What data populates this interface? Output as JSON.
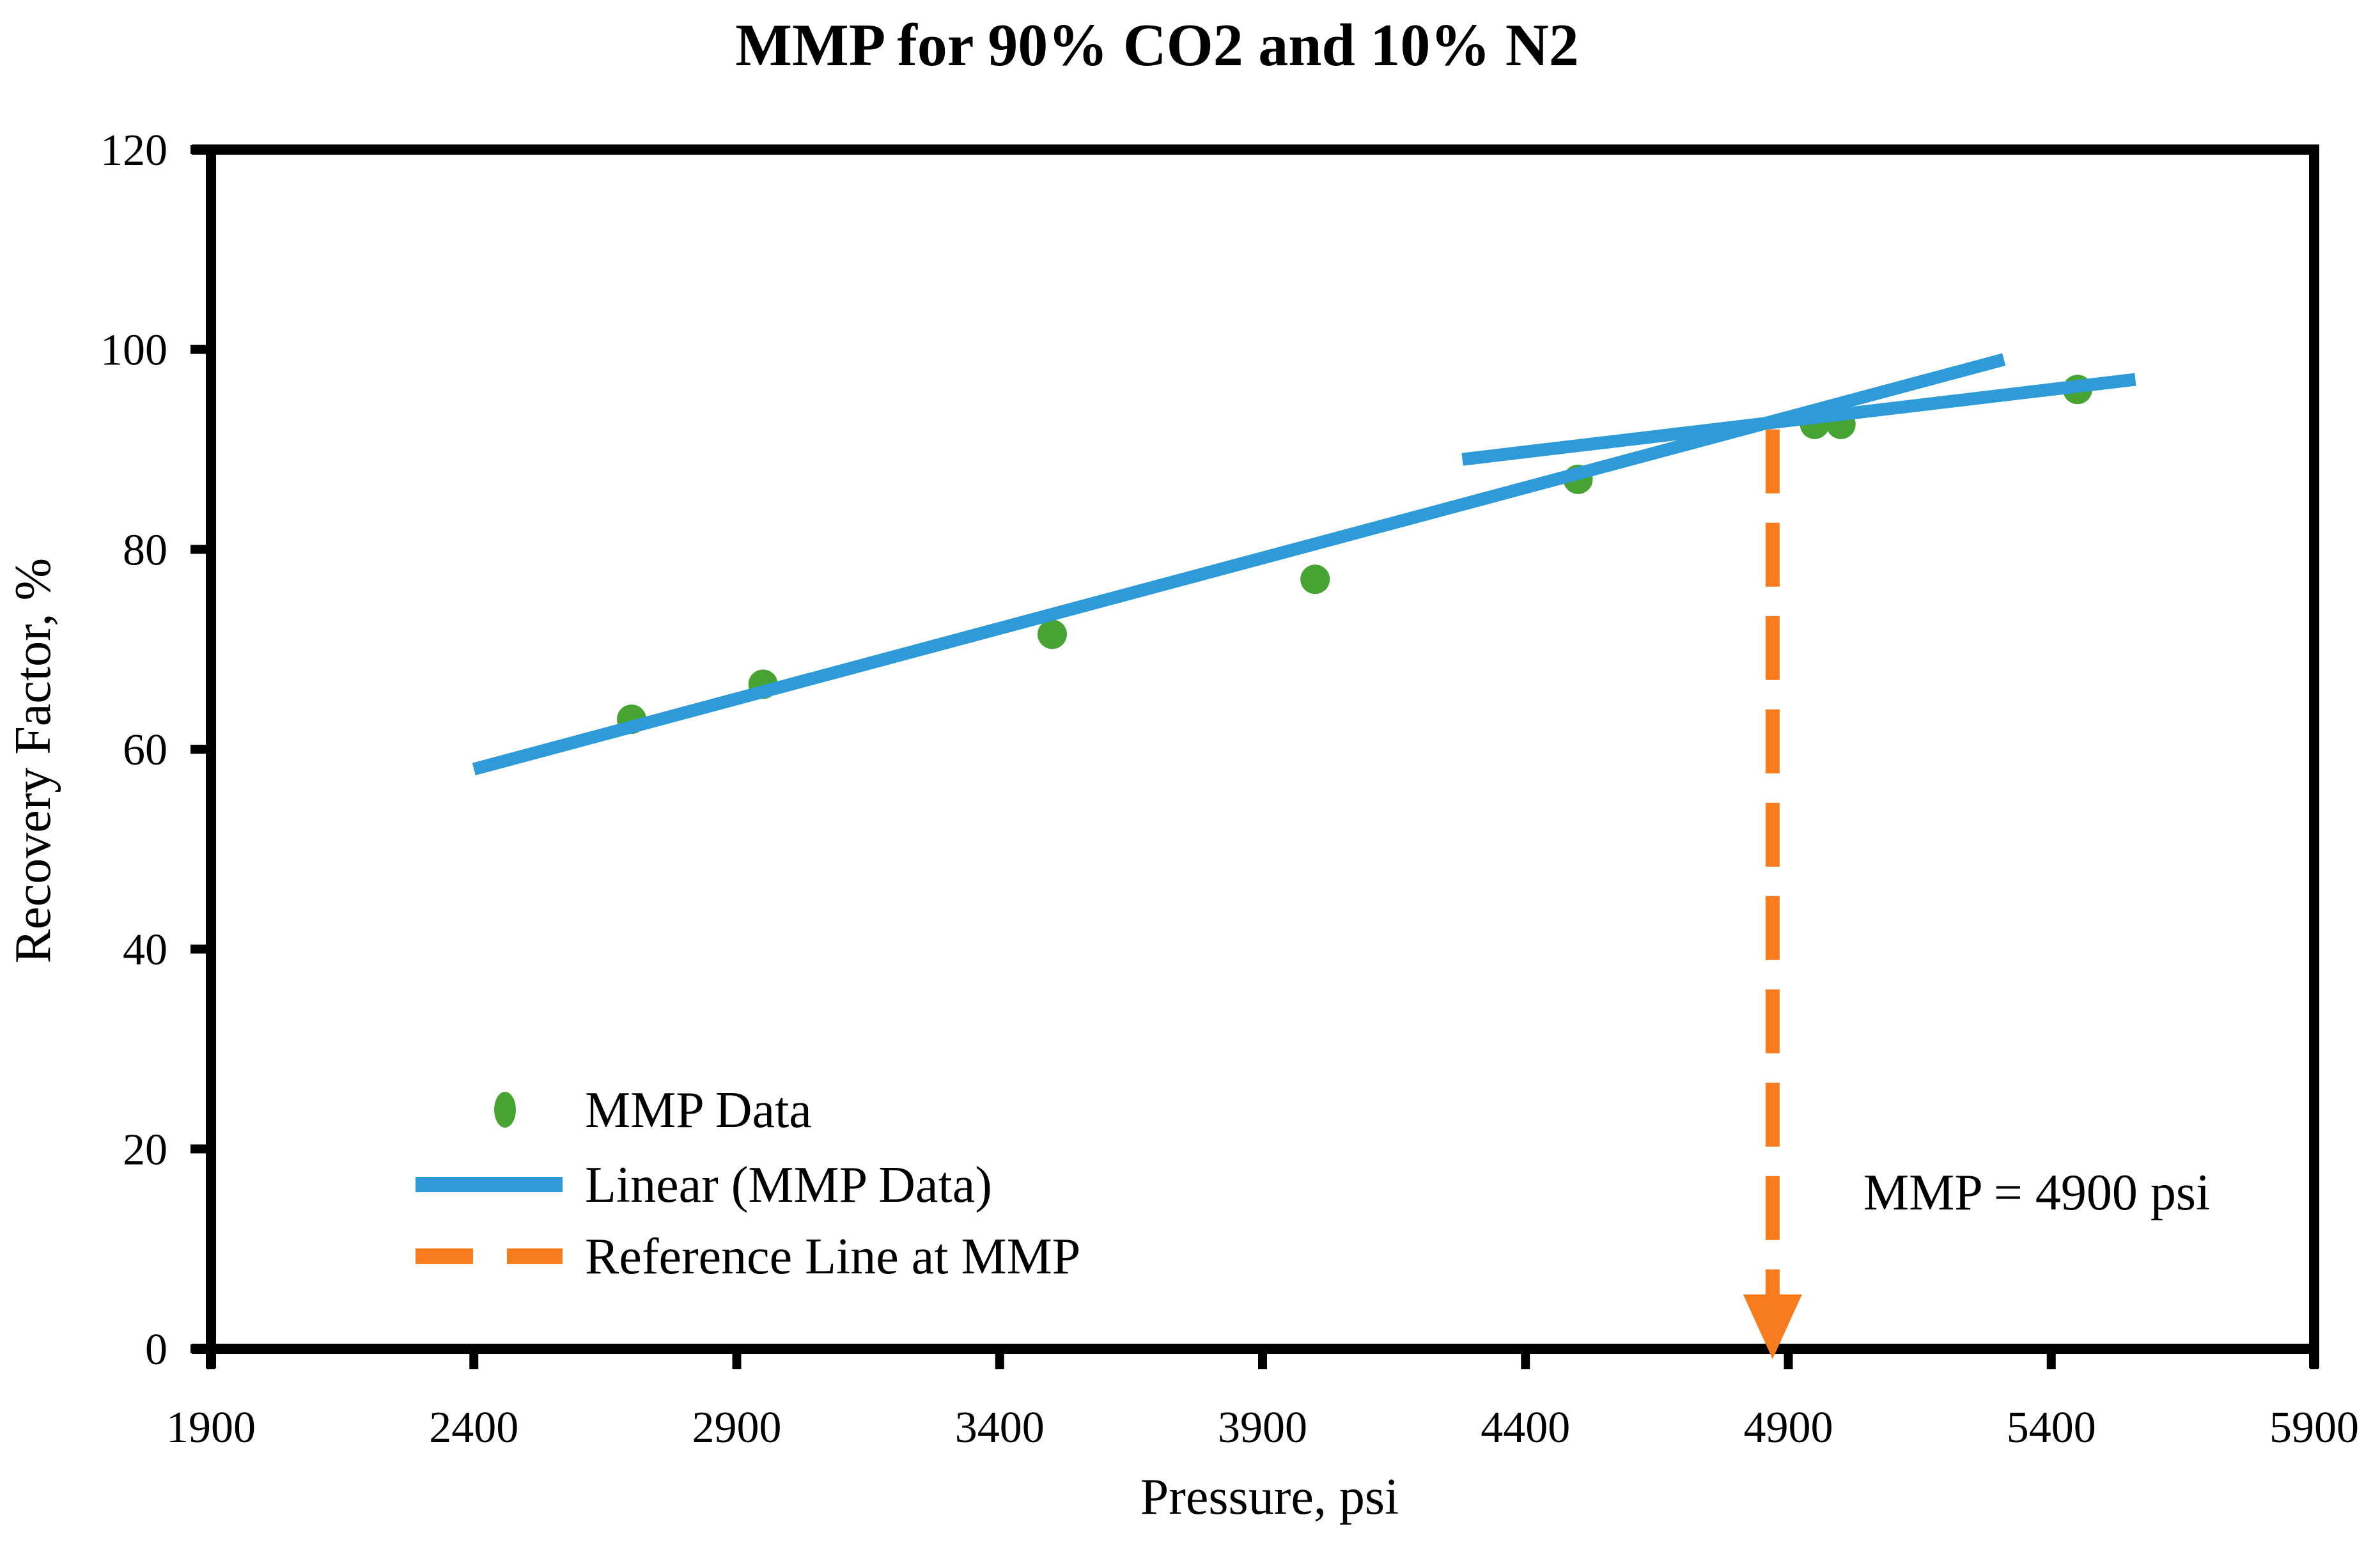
{
  "figure": {
    "background": "#FFFFFF",
    "axis_color": "#000000"
  },
  "chart_data": {
    "type": "scatter",
    "title": "MMP for 90% CO2 and 10% N2",
    "xlabel": "Pressure, psi",
    "ylabel": "Recovery Factor, %",
    "xlim": [
      1900,
      5900
    ],
    "ylim": [
      0,
      120
    ],
    "xticks": [
      1900,
      2400,
      2900,
      3400,
      3900,
      4400,
      4900,
      5400,
      5900
    ],
    "yticks": [
      0,
      20,
      40,
      60,
      80,
      100,
      120
    ],
    "grid": false,
    "legend_position": "inside-lower-left",
    "series": [
      {
        "name": "MMP Data",
        "type": "scatter",
        "marker": "circle",
        "color": "#47A432",
        "points": [
          [
            2700,
            63
          ],
          [
            2950,
            66.5
          ],
          [
            3500,
            71.5
          ],
          [
            4000,
            77
          ],
          [
            4500,
            87
          ],
          [
            4950,
            92.5
          ],
          [
            5000,
            92.5
          ],
          [
            5450,
            96
          ]
        ]
      },
      {
        "name": "Linear (MMP Data)",
        "type": "line",
        "color": "#2E9BD8",
        "segments": [
          [
            [
              2400,
              58
            ],
            [
              5310,
              99
            ]
          ],
          [
            [
              4280,
              89
            ],
            [
              5560,
              97
            ]
          ]
        ]
      },
      {
        "name": "Reference Line at MMP",
        "type": "dashed-vline-arrow",
        "color": "#F87C1E",
        "x": 4870,
        "y_top": 92,
        "y_bottom": 0
      }
    ],
    "annotation": {
      "text": "MMP = 4900 psi"
    }
  }
}
